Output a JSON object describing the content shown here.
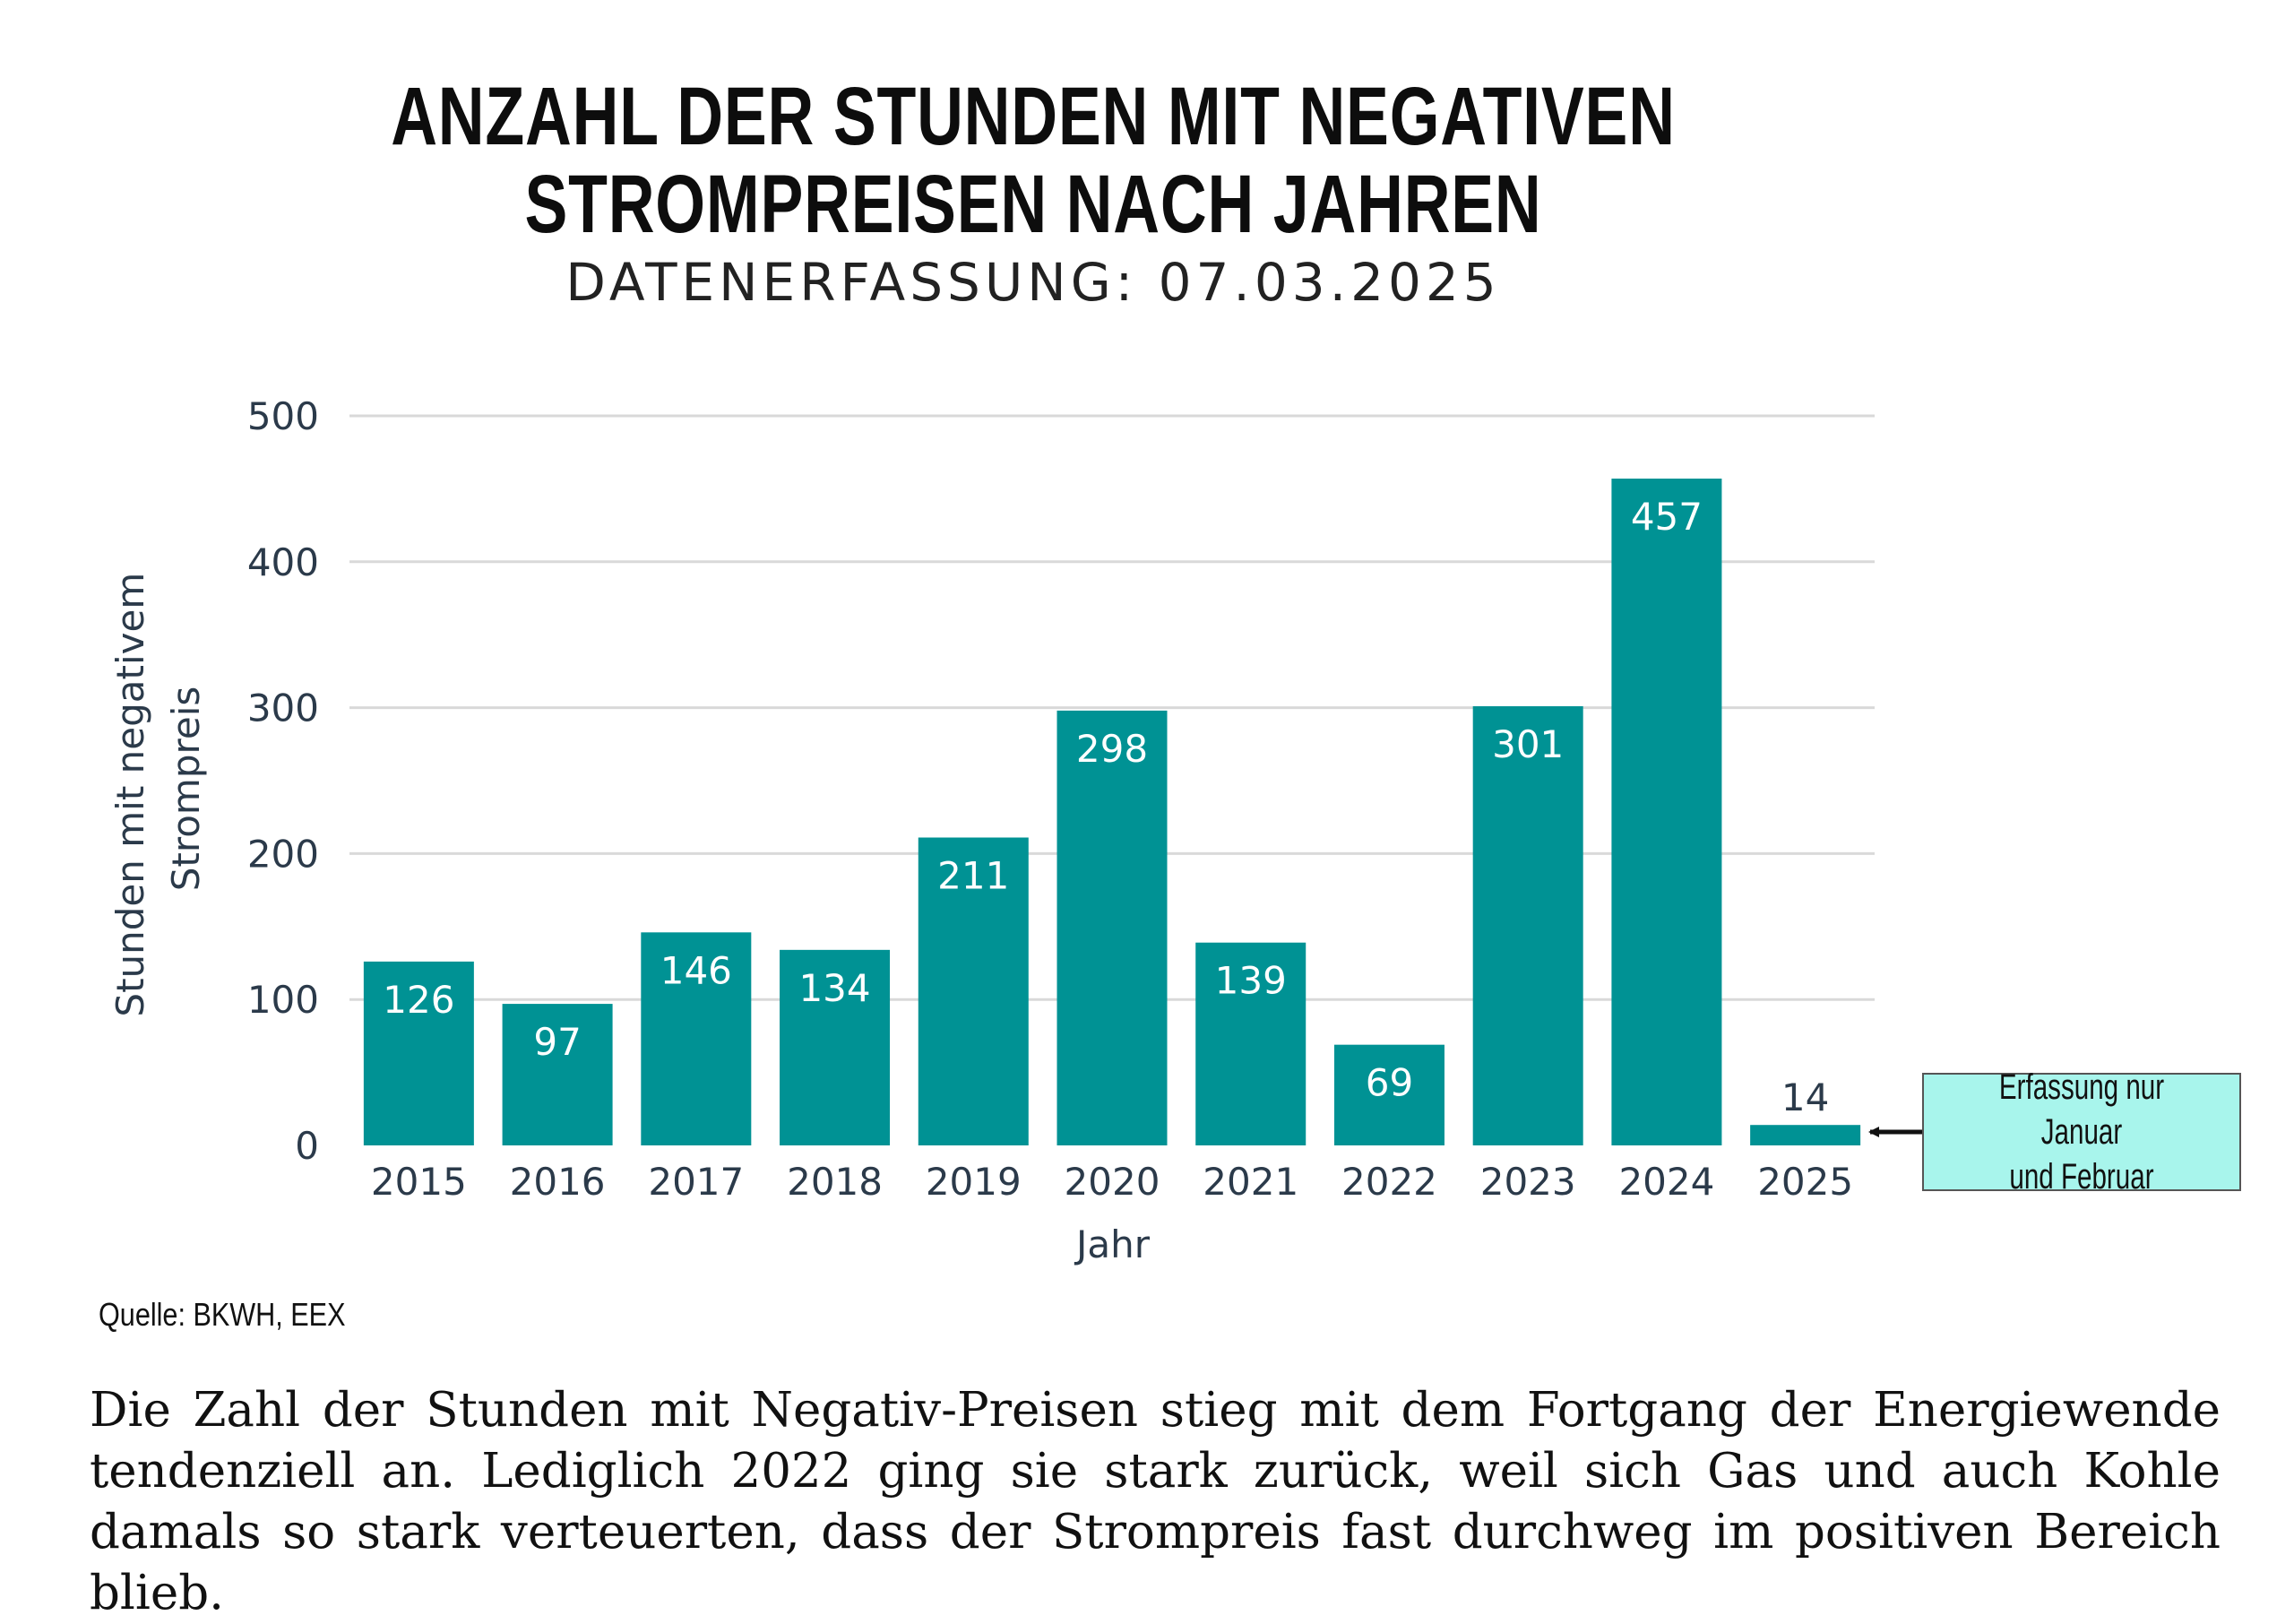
{
  "chart_data": {
    "type": "bar",
    "title": "ANZAHL DER STUNDEN MIT NEGATIVEN STROMPREISEN NACH JAHREN",
    "title_lines": [
      "ANZAHL DER STUNDEN MIT NEGATIVEN",
      "STROMPREISEN NACH JAHREN"
    ],
    "subtitle": "DATENERFASSUNG: 07.03.2025",
    "xlabel": "Jahr",
    "ylabel_lines": [
      "Stunden mit negativem",
      "Strompreis"
    ],
    "categories": [
      "2015",
      "2016",
      "2017",
      "2018",
      "2019",
      "2020",
      "2021",
      "2022",
      "2023",
      "2024",
      "2025"
    ],
    "values": [
      126,
      97,
      146,
      134,
      211,
      298,
      139,
      69,
      301,
      457,
      14
    ],
    "ylim": [
      0,
      500
    ],
    "yticks": [
      0,
      100,
      200,
      300,
      400,
      500
    ],
    "grid": true,
    "bar_color": "#009294",
    "annotation": {
      "target_category": "2025",
      "lines": [
        "Erfassung nur Januar",
        "und Februar"
      ],
      "background": "#a8f5ec"
    }
  },
  "source": "Quelle: BKWH, EEX",
  "caption": "Die Zahl der Stunden mit Negativ-Preisen stieg mit dem Fortgang der Energiewende tendenziell an. Lediglich 2022 ging sie stark zurück, weil sich Gas und auch Kohle damals so stark verteuerten, dass der Strompreis fast durchweg im positiven Bereich blieb.",
  "colors": {
    "bar": "#009294",
    "bar_label": "#ffffff",
    "bar_label_outside": "#2b3a4a",
    "axis_text": "#2b3a4a",
    "grid": "#d9d9d9",
    "callout_bg": "#a8f5ec"
  }
}
